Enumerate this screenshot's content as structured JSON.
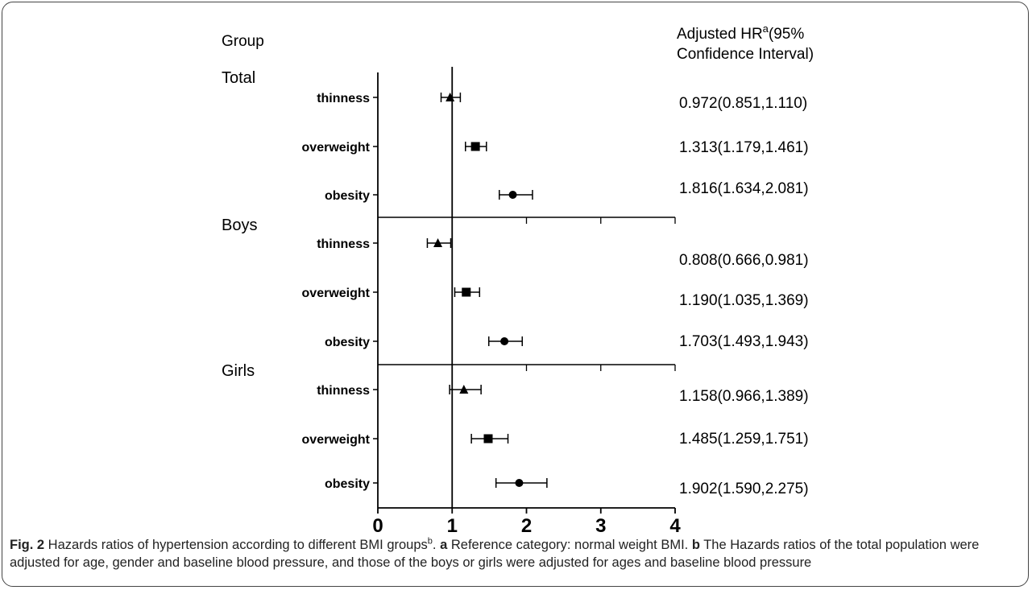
{
  "chart_data": {
    "type": "forest",
    "column_headers": {
      "group": "Group",
      "hr_main": "Adjusted HR",
      "hr_sup": "a",
      "hr_rest": "(95%",
      "hr_line2": "Confidence Interval)"
    },
    "x_ticks": [
      0,
      1,
      2,
      3,
      4
    ],
    "xlim": [
      0,
      4
    ],
    "reference_line": 1,
    "groups": [
      {
        "name": "Total",
        "rows": [
          {
            "label": "thinness",
            "marker": "triangle",
            "hr": 0.972,
            "lo": 0.851,
            "hi": 1.11,
            "text": "0.972(0.851,1.110)"
          },
          {
            "label": "overweight",
            "marker": "square",
            "hr": 1.313,
            "lo": 1.179,
            "hi": 1.461,
            "text": "1.313(1.179,1.461)"
          },
          {
            "label": "obesity",
            "marker": "circle",
            "hr": 1.816,
            "lo": 1.634,
            "hi": 2.081,
            "text": "1.816(1.634,2.081)"
          }
        ]
      },
      {
        "name": "Boys",
        "rows": [
          {
            "label": "thinness",
            "marker": "triangle",
            "hr": 0.808,
            "lo": 0.666,
            "hi": 0.981,
            "text": "0.808(0.666,0.981)"
          },
          {
            "label": "overweight",
            "marker": "square",
            "hr": 1.19,
            "lo": 1.035,
            "hi": 1.369,
            "text": "1.190(1.035,1.369)"
          },
          {
            "label": "obesity",
            "marker": "circle",
            "hr": 1.703,
            "lo": 1.493,
            "hi": 1.943,
            "text": "1.703(1.493,1.943)"
          }
        ]
      },
      {
        "name": "Girls",
        "rows": [
          {
            "label": "thinness",
            "marker": "triangle",
            "hr": 1.158,
            "lo": 0.966,
            "hi": 1.389,
            "text": "1.158(0.966,1.389)"
          },
          {
            "label": "overweight",
            "marker": "square",
            "hr": 1.485,
            "lo": 1.259,
            "hi": 1.751,
            "text": "1.485(1.259,1.751)"
          },
          {
            "label": "obesity",
            "marker": "circle",
            "hr": 1.902,
            "lo": 1.59,
            "hi": 2.275,
            "text": "1.902(1.590,2.275)"
          }
        ]
      }
    ]
  },
  "caption": {
    "fig_label": "Fig. 2",
    "text1": " Hazards ratios of hypertension according to different BMI groups",
    "sup": "b",
    "text2": ". ",
    "a_label": "a",
    "a_text": " Reference category: normal weight BMI. ",
    "b_label": "b",
    "b_text": " The Hazards ratios of the total population were adjusted for age, gender and baseline blood pressure, and those of the boys or girls were adjusted for ages and baseline blood pressure"
  }
}
